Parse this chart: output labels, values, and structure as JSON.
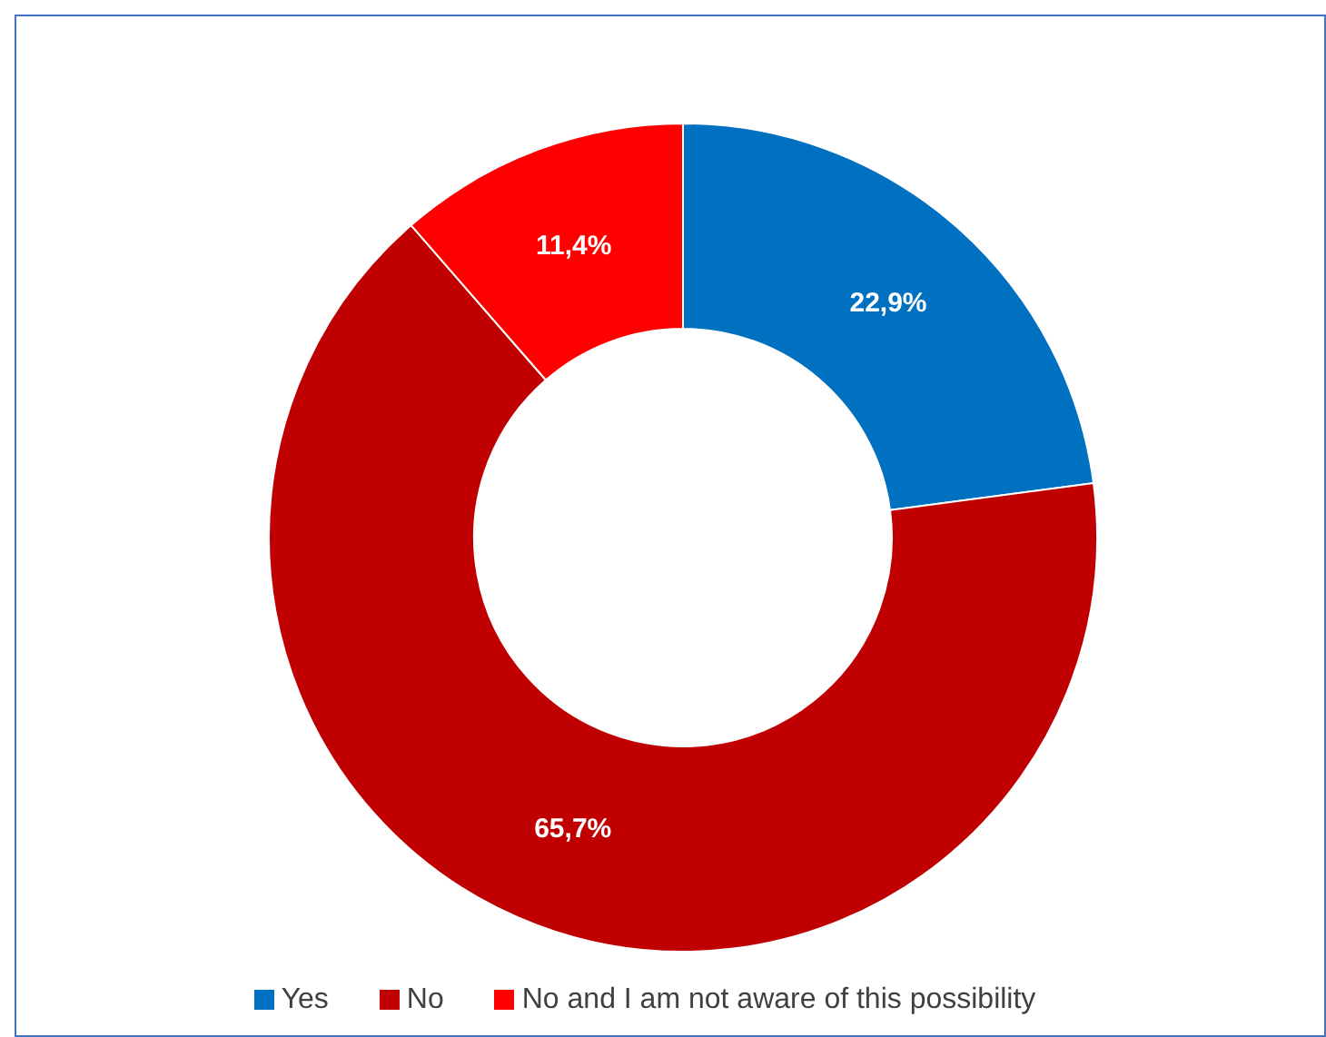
{
  "chart_data": {
    "type": "donut",
    "categories": [
      "Yes",
      "No",
      "No and I am not aware of this possibility"
    ],
    "values": [
      22.9,
      65.7,
      11.4
    ],
    "colors": [
      "#0070c0",
      "#c00000",
      "#ff0000"
    ],
    "value_labels": [
      "22,9%",
      "65,7%",
      "11,4%"
    ],
    "legend": "bottom"
  }
}
